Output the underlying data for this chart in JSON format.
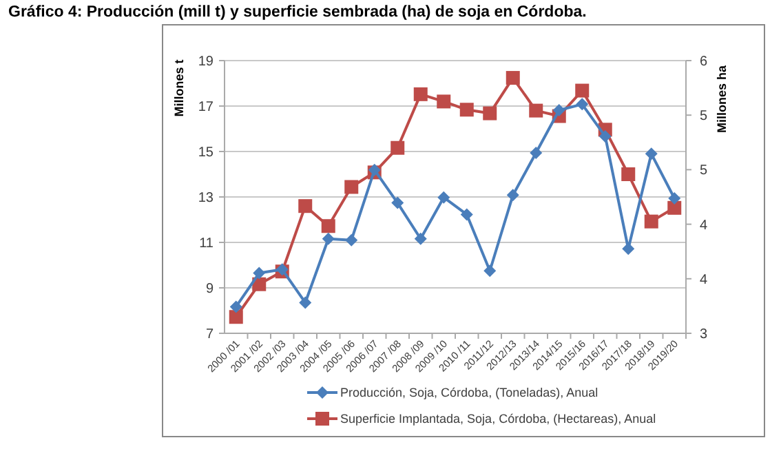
{
  "chart_data": {
    "type": "line",
    "title": "Gráfico 4: Producción (mill t) y  superficie sembrada (ha) de soja en Córdoba.",
    "ylabel": "Millones t",
    "y2label": "Millones ha",
    "categories": [
      "2000 /01",
      "2001 /02",
      "2002 /03",
      "2003 /04",
      "2004 /05",
      "2005 /06",
      "2006 /07",
      "2007 /08",
      "2008 /09",
      "2009 /10",
      "2010 /11",
      "2011/12",
      "2012/13",
      "2013/14",
      "2014/15",
      "2015/16",
      "2016/17",
      "2017/18",
      "2018/19",
      "2019/20"
    ],
    "series": [
      {
        "name": "Producción, Soja, Córdoba, (Toneladas), Anual",
        "color": "#4a7ebb",
        "marker": "diamond",
        "values": [
          8.17,
          9.65,
          9.81,
          8.35,
          11.16,
          11.1,
          14.19,
          12.74,
          11.16,
          12.98,
          12.23,
          9.75,
          13.08,
          14.94,
          16.82,
          17.08,
          15.67,
          10.72,
          14.9,
          12.94
        ]
      },
      {
        "name": "Superficie Implantada, Soja, Córdoba, (Hectareas), Anual",
        "color": "#be4b48",
        "marker": "square",
        "axis": "y2",
        "values": [
          3.18,
          3.54,
          3.68,
          4.4,
          4.18,
          4.61,
          4.77,
          5.04,
          5.63,
          5.55,
          5.46,
          5.42,
          5.81,
          5.45,
          5.39,
          5.67,
          5.24,
          4.75,
          4.23,
          4.38
        ]
      }
    ],
    "ylim": [
      7,
      19
    ],
    "yticks": [
      7,
      9,
      11,
      13,
      15,
      17,
      19
    ],
    "y2lim": [
      3,
      6
    ],
    "y2ticks": [
      3,
      {
        "value": 3.6,
        "label": "4"
      },
      {
        "value": 4.2,
        "label": "4"
      },
      {
        "value": 4.8,
        "label": "5"
      },
      {
        "value": 5.4,
        "label": "5"
      },
      6
    ],
    "grid": "y",
    "legend": "bottom"
  }
}
